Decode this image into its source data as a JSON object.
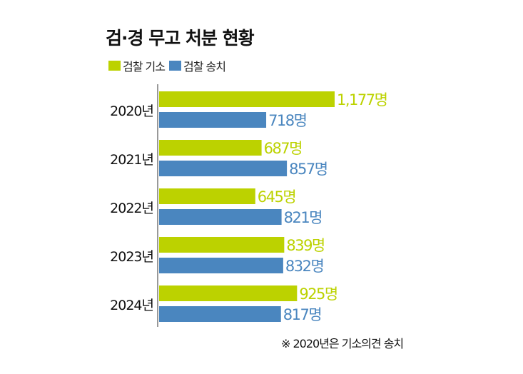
{
  "title": "검·경 무고 처분 현황",
  "note": "※ 2020년은 기소의견 송치",
  "chart_data": {
    "type": "bar",
    "orientation": "horizontal",
    "title": "검·경 무고 처분 현황",
    "categories": [
      "2020년",
      "2021년",
      "2022년",
      "2023년",
      "2024년"
    ],
    "unit": "명",
    "legend_position": "top-left",
    "grid": false,
    "series": [
      {
        "name": "검찰 기소",
        "color": "#bcd200",
        "values": [
          1177,
          687,
          645,
          839,
          925
        ],
        "labels": [
          "1,177명",
          "687명",
          "645명",
          "839명",
          "925명"
        ]
      },
      {
        "name": "검찰 송치",
        "color": "#4a86bf",
        "values": [
          718,
          857,
          821,
          832,
          817
        ],
        "labels": [
          "718명",
          "857명",
          "821명",
          "832명",
          "817명"
        ]
      }
    ]
  }
}
